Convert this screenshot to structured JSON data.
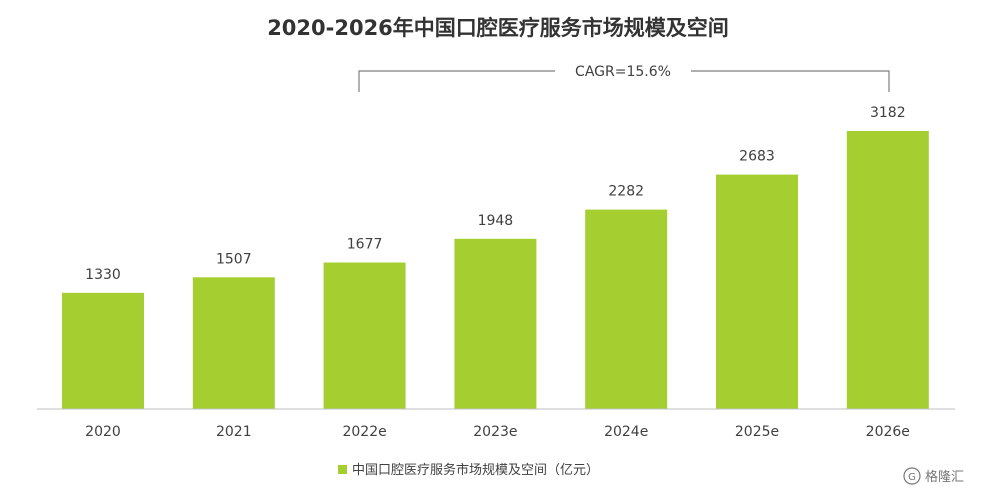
{
  "chart_data": {
    "type": "bar",
    "title": "2020-2026年中国口腔医疗服务市场规模及空间",
    "categories": [
      "2020",
      "2021",
      "2022e",
      "2023e",
      "2024e",
      "2025e",
      "2026e"
    ],
    "series": [
      {
        "name": "中国口腔医疗服务市场规模及空间（亿元）",
        "values": [
          1330,
          1507,
          1677,
          1948,
          2282,
          2683,
          3182
        ]
      }
    ],
    "value_labels": [
      "1330",
      "1507",
      "1677",
      "1948",
      "2282",
      "2683",
      "3182"
    ],
    "annotation": "CAGR=15.6%",
    "ylim": [
      0,
      3182
    ],
    "grid": false,
    "legend_position": "bottom-center",
    "bar_color": "#a5cf30"
  },
  "watermark": {
    "label": "格隆汇"
  }
}
